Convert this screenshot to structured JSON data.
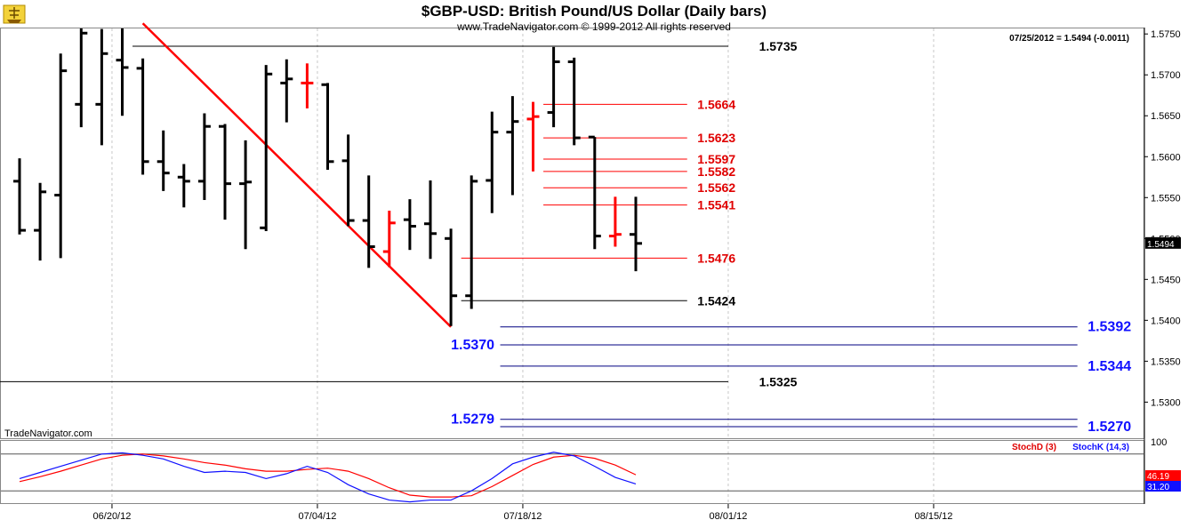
{
  "header": {
    "title": "$GBP-USD:  British Pound/US Dollar  (Daily bars)",
    "subtitle": "www.TradeNavigator.com © 1999-2012 All rights reserved",
    "info": "07/25/2012 = 1.5494 (-0.0011)",
    "brand": "TradeNavigator.com",
    "logo_icon": "trade-navigator-ship-logo-icon"
  },
  "colors": {
    "up_bar": "#000000",
    "red": "#ff0000",
    "blue": "#1010ff",
    "navy": "#000080",
    "grid": "#c8c8c8"
  },
  "chart_data": [
    {
      "type": "ohlc",
      "title": "$GBP-USD:  British Pound/US Dollar  (Daily bars)",
      "ylim": [
        1.526,
        1.576
      ],
      "y_ticks": [
        "1.5750",
        "1.5700",
        "1.5650",
        "1.5600",
        "1.5550",
        "1.5500",
        "1.5450",
        "1.5400",
        "1.5350",
        "1.5300"
      ],
      "x_ticks": [
        {
          "label": "06/20/12",
          "slot": 4.5
        },
        {
          "label": "07/04/12",
          "slot": 14.5
        },
        {
          "label": "07/18/12",
          "slot": 24.5
        },
        {
          "label": "08/01/12",
          "slot": 34.5
        },
        {
          "label": "08/15/12",
          "slot": 44.5
        }
      ],
      "last_price_tag": "1.5494",
      "bars": [
        {
          "o": 1.557,
          "h": 1.5598,
          "l": 1.5505,
          "c": 1.551,
          "color": "black"
        },
        {
          "o": 1.551,
          "h": 1.5568,
          "l": 1.5473,
          "c": 1.5557,
          "color": "black"
        },
        {
          "o": 1.5553,
          "h": 1.5726,
          "l": 1.5476,
          "c": 1.5705,
          "color": "black"
        },
        {
          "o": 1.5664,
          "h": 1.5758,
          "l": 1.5636,
          "c": 1.5751,
          "color": "black"
        },
        {
          "o": 1.5664,
          "h": 1.5756,
          "l": 1.5614,
          "c": 1.5726,
          "color": "black"
        },
        {
          "o": 1.5718,
          "h": 1.576,
          "l": 1.565,
          "c": 1.5709,
          "color": "black"
        },
        {
          "o": 1.5708,
          "h": 1.572,
          "l": 1.5578,
          "c": 1.5594,
          "color": "black"
        },
        {
          "o": 1.5594,
          "h": 1.5632,
          "l": 1.5558,
          "c": 1.558,
          "color": "black"
        },
        {
          "o": 1.5575,
          "h": 1.5591,
          "l": 1.5538,
          "c": 1.557,
          "color": "black"
        },
        {
          "o": 1.557,
          "h": 1.5653,
          "l": 1.5547,
          "c": 1.5637,
          "color": "black"
        },
        {
          "o": 1.5637,
          "h": 1.564,
          "l": 1.5523,
          "c": 1.5567,
          "color": "black"
        },
        {
          "o": 1.5567,
          "h": 1.562,
          "l": 1.5487,
          "c": 1.5569,
          "color": "black"
        },
        {
          "o": 1.5513,
          "h": 1.5712,
          "l": 1.5509,
          "c": 1.5701,
          "color": "black"
        },
        {
          "o": 1.569,
          "h": 1.5719,
          "l": 1.5642,
          "c": 1.5695,
          "color": "black"
        },
        {
          "o": 1.569,
          "h": 1.5714,
          "l": 1.5659,
          "c": 1.569,
          "color": "red"
        },
        {
          "o": 1.5688,
          "h": 1.569,
          "l": 1.5584,
          "c": 1.5594,
          "color": "black"
        },
        {
          "o": 1.5595,
          "h": 1.5627,
          "l": 1.5515,
          "c": 1.5522,
          "color": "black"
        },
        {
          "o": 1.5522,
          "h": 1.5577,
          "l": 1.5464,
          "c": 1.549,
          "color": "black"
        },
        {
          "o": 1.5484,
          "h": 1.5534,
          "l": 1.5465,
          "c": 1.5519,
          "color": "red"
        },
        {
          "o": 1.5523,
          "h": 1.5548,
          "l": 1.5486,
          "c": 1.5515,
          "color": "black"
        },
        {
          "o": 1.5518,
          "h": 1.5571,
          "l": 1.5475,
          "c": 1.5506,
          "color": "black"
        },
        {
          "o": 1.55,
          "h": 1.5512,
          "l": 1.5393,
          "c": 1.543,
          "color": "black"
        },
        {
          "o": 1.543,
          "h": 1.5577,
          "l": 1.5414,
          "c": 1.557,
          "color": "black"
        },
        {
          "o": 1.5571,
          "h": 1.5655,
          "l": 1.5531,
          "c": 1.563,
          "color": "black"
        },
        {
          "o": 1.563,
          "h": 1.5674,
          "l": 1.5553,
          "c": 1.5643,
          "color": "black"
        },
        {
          "o": 1.5646,
          "h": 1.5667,
          "l": 1.5582,
          "c": 1.5649,
          "color": "red"
        },
        {
          "o": 1.5654,
          "h": 1.5734,
          "l": 1.5636,
          "c": 1.5716,
          "color": "black"
        },
        {
          "o": 1.5716,
          "h": 1.5721,
          "l": 1.5614,
          "c": 1.5623,
          "color": "black"
        },
        {
          "o": 1.5624,
          "h": 1.5624,
          "l": 1.5487,
          "c": 1.5503,
          "color": "black"
        },
        {
          "o": 1.5503,
          "h": 1.5551,
          "l": 1.549,
          "c": 1.5505,
          "color": "red"
        },
        {
          "o": 1.5505,
          "h": 1.5551,
          "l": 1.546,
          "c": 1.5494,
          "color": "black"
        }
      ],
      "trendline": {
        "from": {
          "slot": 6,
          "price": 1.5763
        },
        "to": {
          "slot": 21,
          "price": 1.5392
        },
        "color": "red"
      },
      "levels": [
        {
          "label": "1.5735",
          "value": 1.5735,
          "color": "black",
          "line_slot": [
            5.5,
            34.5
          ],
          "label_slot": 36,
          "size": "m"
        },
        {
          "label": "1.5664",
          "value": 1.5664,
          "color": "red",
          "line_slot": [
            25.5,
            32.5
          ],
          "label_slot": 33,
          "size": "m"
        },
        {
          "label": "1.5623",
          "value": 1.5623,
          "color": "red",
          "line_slot": [
            25.5,
            32.5
          ],
          "label_slot": 33,
          "size": "m"
        },
        {
          "label": "1.5597",
          "value": 1.5597,
          "color": "red",
          "line_slot": [
            25.5,
            32.5
          ],
          "label_slot": 33,
          "size": "m"
        },
        {
          "label": "1.5582",
          "value": 1.5582,
          "color": "red",
          "line_slot": [
            25.5,
            32.5
          ],
          "label_slot": 33,
          "size": "m"
        },
        {
          "label": "1.5562",
          "value": 1.5562,
          "color": "red",
          "line_slot": [
            25.5,
            32.5
          ],
          "label_slot": 33,
          "size": "m"
        },
        {
          "label": "1.5541",
          "value": 1.5541,
          "color": "red",
          "line_slot": [
            25.5,
            32.5
          ],
          "label_slot": 33,
          "size": "m"
        },
        {
          "label": "1.5476",
          "value": 1.5476,
          "color": "red",
          "line_slot": [
            21.5,
            32.5
          ],
          "label_slot": 33,
          "size": "m"
        },
        {
          "label": "1.5424",
          "value": 1.5424,
          "color": "black",
          "line_slot": [
            21.5,
            32.5
          ],
          "label_slot": 33,
          "size": "m"
        },
        {
          "label": "1.5392",
          "value": 1.5392,
          "color": "navy",
          "line_slot": [
            23.4,
            51.5
          ],
          "label_slot": 52,
          "size": "l"
        },
        {
          "label": "1.5370",
          "value": 1.537,
          "color": "navy",
          "line_slot": [
            23.4,
            51.5
          ],
          "label_slot": 21,
          "size": "l"
        },
        {
          "label": "1.5344",
          "value": 1.5344,
          "color": "navy",
          "line_slot": [
            23.4,
            51.5
          ],
          "label_slot": 52,
          "size": "l"
        },
        {
          "label": "1.5325",
          "value": 1.5325,
          "color": "black",
          "line_slot": [
            -1,
            34.5
          ],
          "label_slot": 36,
          "size": "m"
        },
        {
          "label": "1.5279",
          "value": 1.5279,
          "color": "navy",
          "line_slot": [
            23.4,
            51.5
          ],
          "label_slot": 21,
          "size": "l"
        },
        {
          "label": "1.5270",
          "value": 1.527,
          "color": "navy",
          "line_slot": [
            23.4,
            51.5
          ],
          "label_slot": 52,
          "size": "l"
        }
      ]
    },
    {
      "type": "line",
      "ylim": [
        0,
        100
      ],
      "y_ticks": [
        "100"
      ],
      "guides": [
        80,
        20
      ],
      "legend": [
        {
          "label": "StochD (3)",
          "color": "red"
        },
        {
          "label": "StochK (14,3)",
          "color": "blue"
        }
      ],
      "last_tags": [
        {
          "label": "46.19",
          "color": "red",
          "value": 46.19
        },
        {
          "label": "31.20",
          "color": "blue",
          "value": 31.2
        }
      ],
      "series": [
        {
          "name": "StochD (3)",
          "color": "red",
          "values": [
            35,
            43,
            52,
            62,
            72,
            78,
            80,
            77,
            72,
            66,
            62,
            56,
            52,
            52,
            55,
            57,
            52,
            40,
            25,
            13,
            10,
            10,
            12,
            27,
            45,
            63,
            75,
            78,
            73,
            62,
            46.19
          ]
        },
        {
          "name": "StochK (14,3)",
          "color": "blue",
          "values": [
            40,
            50,
            60,
            70,
            80,
            82,
            78,
            72,
            60,
            50,
            52,
            50,
            40,
            48,
            60,
            50,
            30,
            15,
            5,
            2,
            5,
            5,
            20,
            40,
            64,
            75,
            83,
            77,
            60,
            42,
            31.2
          ]
        }
      ]
    }
  ]
}
